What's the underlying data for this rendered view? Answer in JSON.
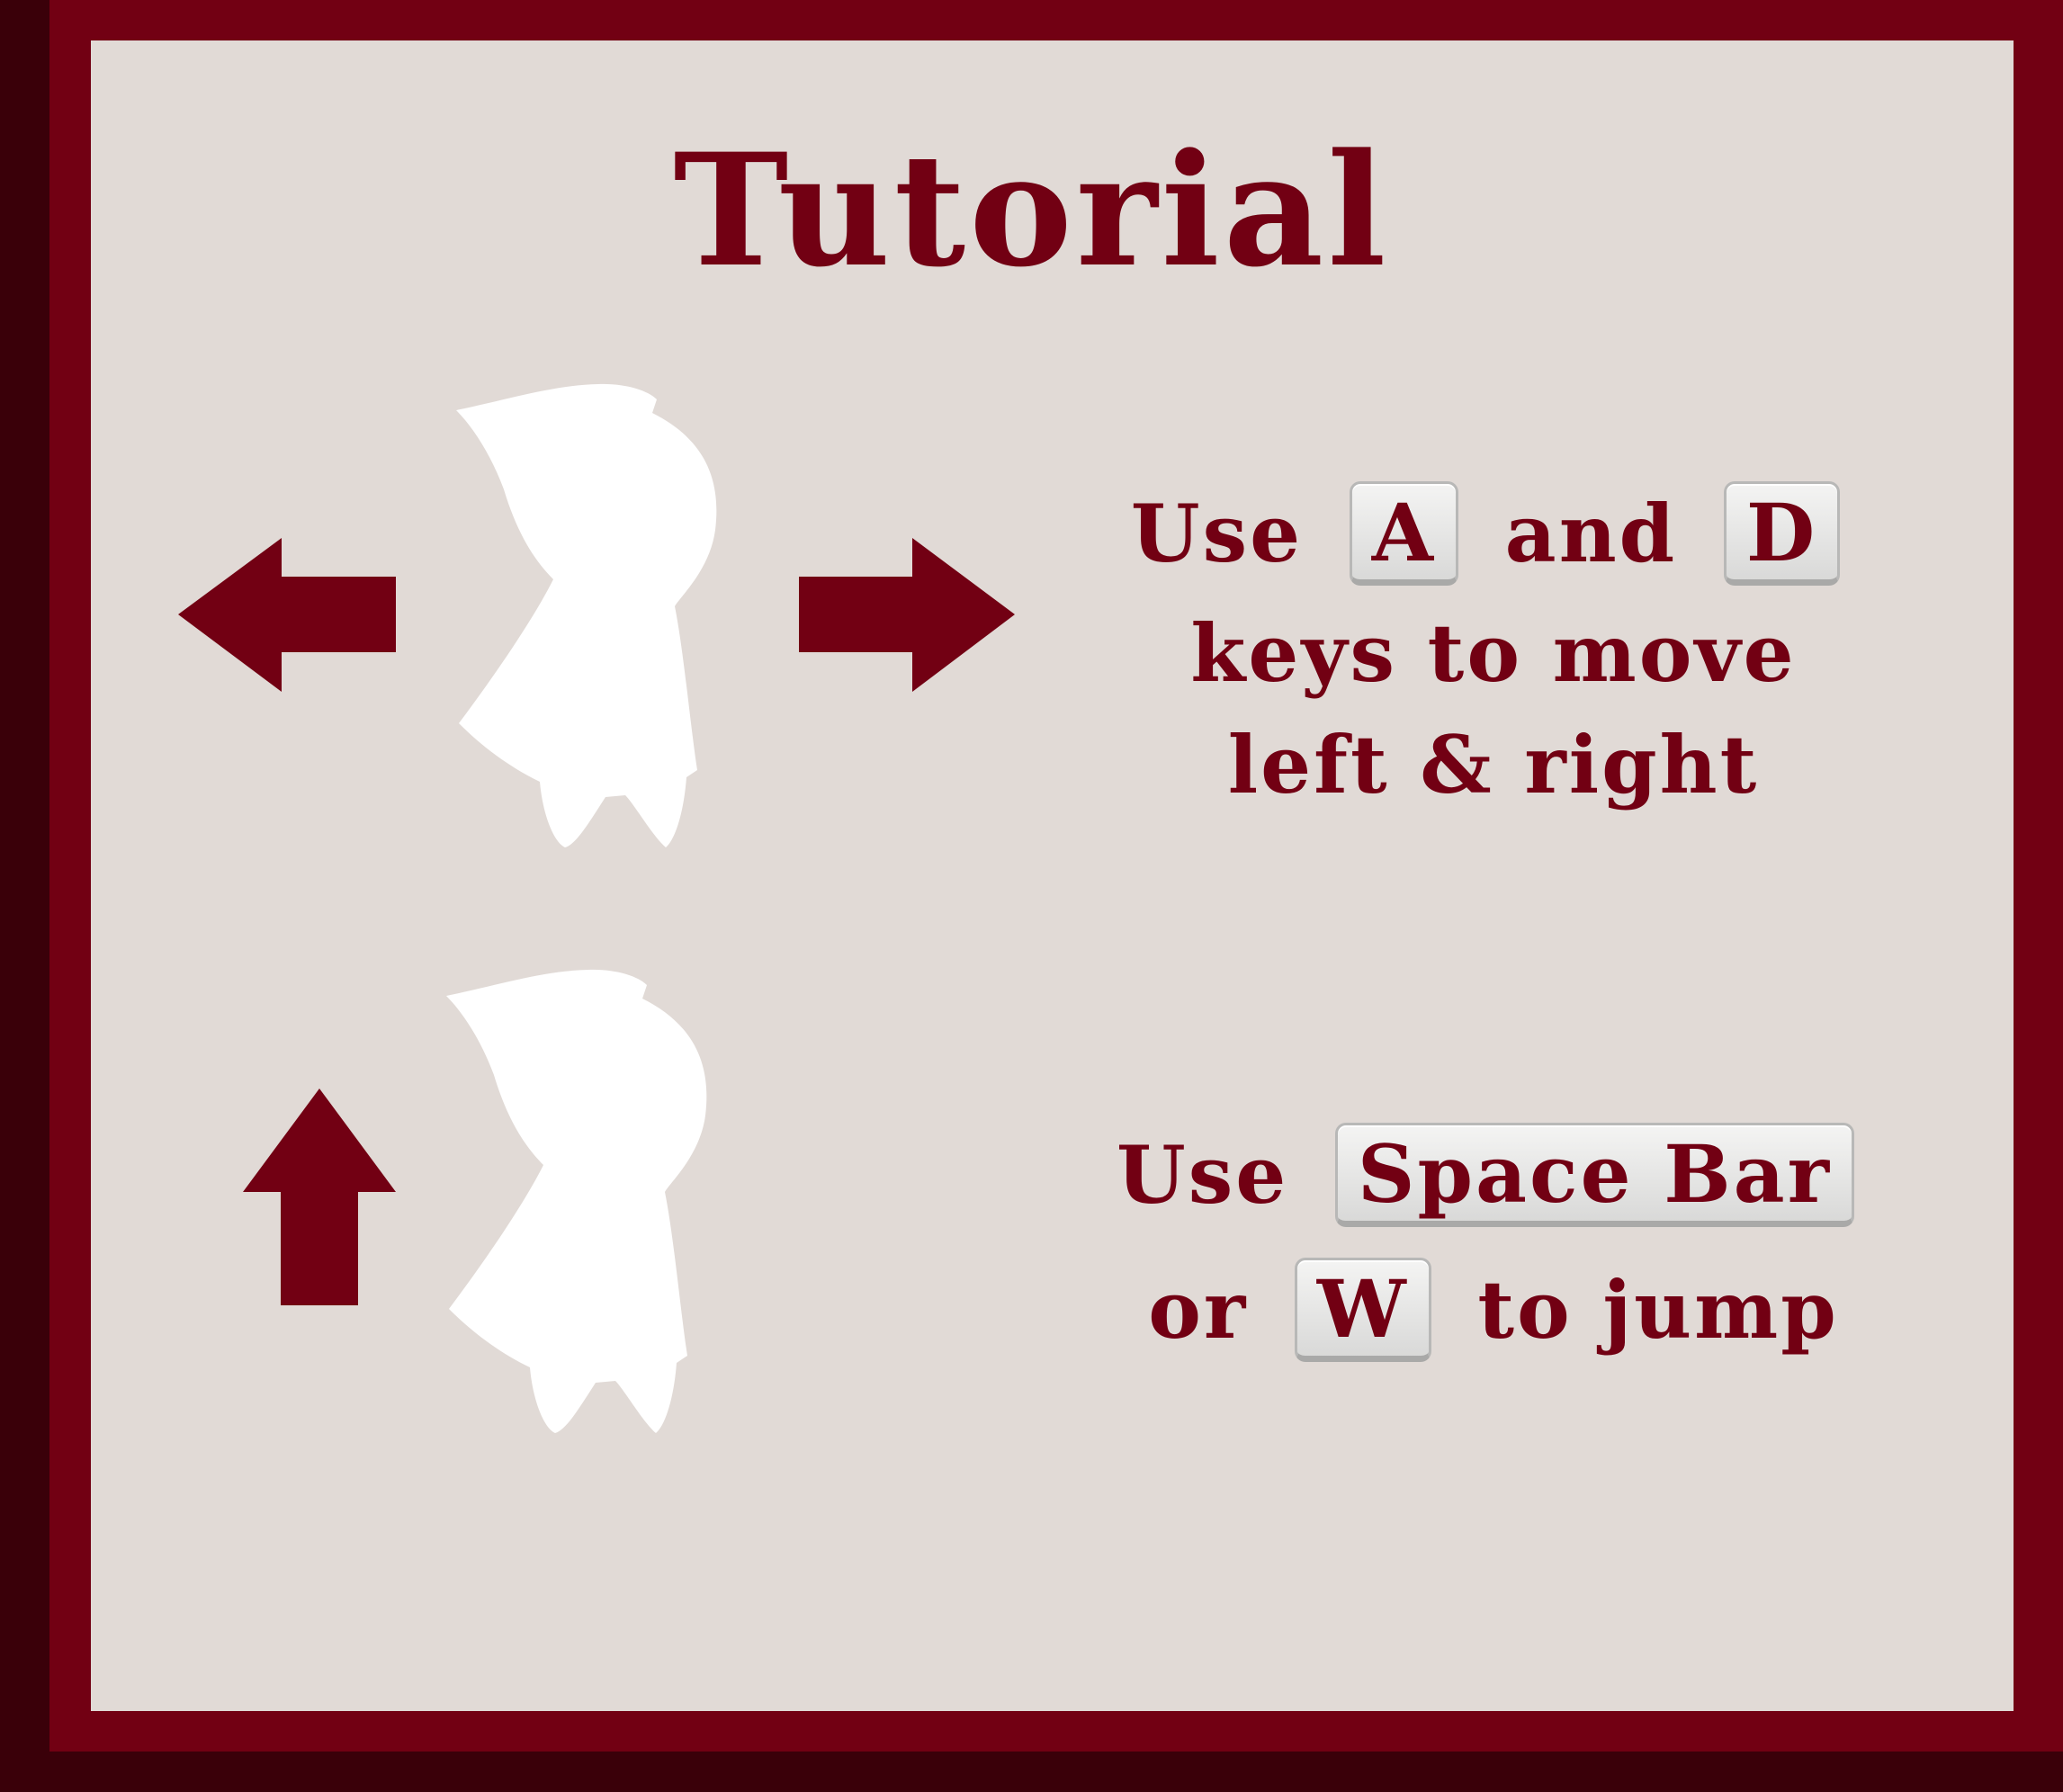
{
  "title": "Tutorial",
  "colors": {
    "frame": "#720013",
    "frame_shadow": "#3a0009",
    "panel": "#e1dad6",
    "text": "#720013",
    "figure": "#ffffff",
    "key_face": "#e6e6e5"
  },
  "move": {
    "arrows": [
      "arrow-left-icon",
      "arrow-right-icon"
    ],
    "line1": {
      "word_use": "Use",
      "key_a": "A",
      "word_and": "and",
      "key_d": "D"
    },
    "line2": "keys to move",
    "line3": "left & right"
  },
  "jump": {
    "arrows": [
      "arrow-up-icon"
    ],
    "line1": {
      "word_use": "Use",
      "key_space": "Space Bar"
    },
    "line2": {
      "word_or": "or",
      "key_w": "W",
      "word_rest": "to jump"
    }
  }
}
